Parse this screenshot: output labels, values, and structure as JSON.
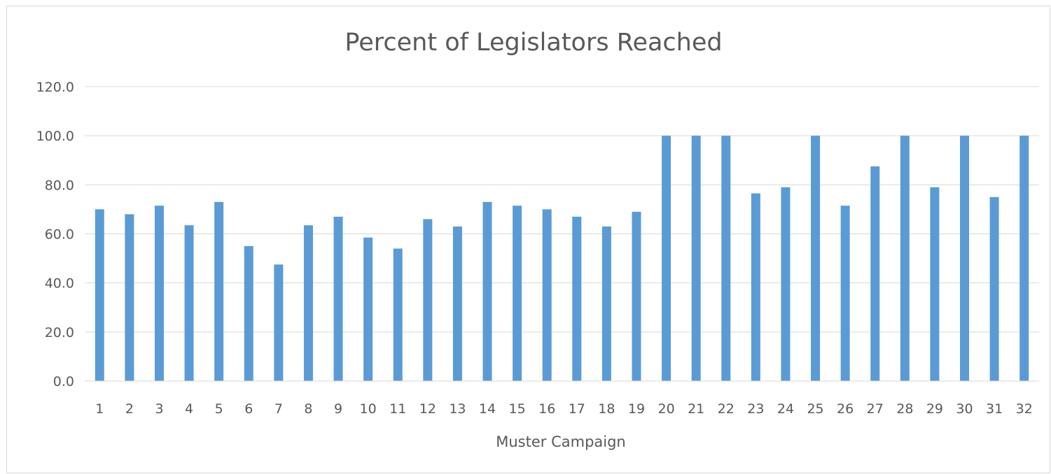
{
  "chart_data": {
    "type": "bar",
    "title": "Percent of Legislators Reached",
    "xlabel": "Muster Campaign",
    "ylabel": "",
    "ylim": [
      0,
      120
    ],
    "y_ticks": [
      "0.0",
      "20.0",
      "40.0",
      "60.0",
      "80.0",
      "100.0",
      "120.0"
    ],
    "grid": true,
    "legend": "none",
    "bar_color": "#5b9bd5",
    "categories": [
      "1",
      "2",
      "3",
      "4",
      "5",
      "6",
      "7",
      "8",
      "9",
      "10",
      "11",
      "12",
      "13",
      "14",
      "15",
      "16",
      "17",
      "18",
      "19",
      "20",
      "21",
      "22",
      "23",
      "24",
      "25",
      "26",
      "27",
      "28",
      "29",
      "30",
      "31",
      "32"
    ],
    "values": [
      70.0,
      68.0,
      71.5,
      63.5,
      73.0,
      55.0,
      47.5,
      63.5,
      67.0,
      58.5,
      54.0,
      66.0,
      63.0,
      73.0,
      71.5,
      70.0,
      67.0,
      63.0,
      69.0,
      100.0,
      100.0,
      100.0,
      76.5,
      79.0,
      100.0,
      71.5,
      87.5,
      100.0,
      79.0,
      100.0,
      75.0,
      100.0
    ]
  }
}
